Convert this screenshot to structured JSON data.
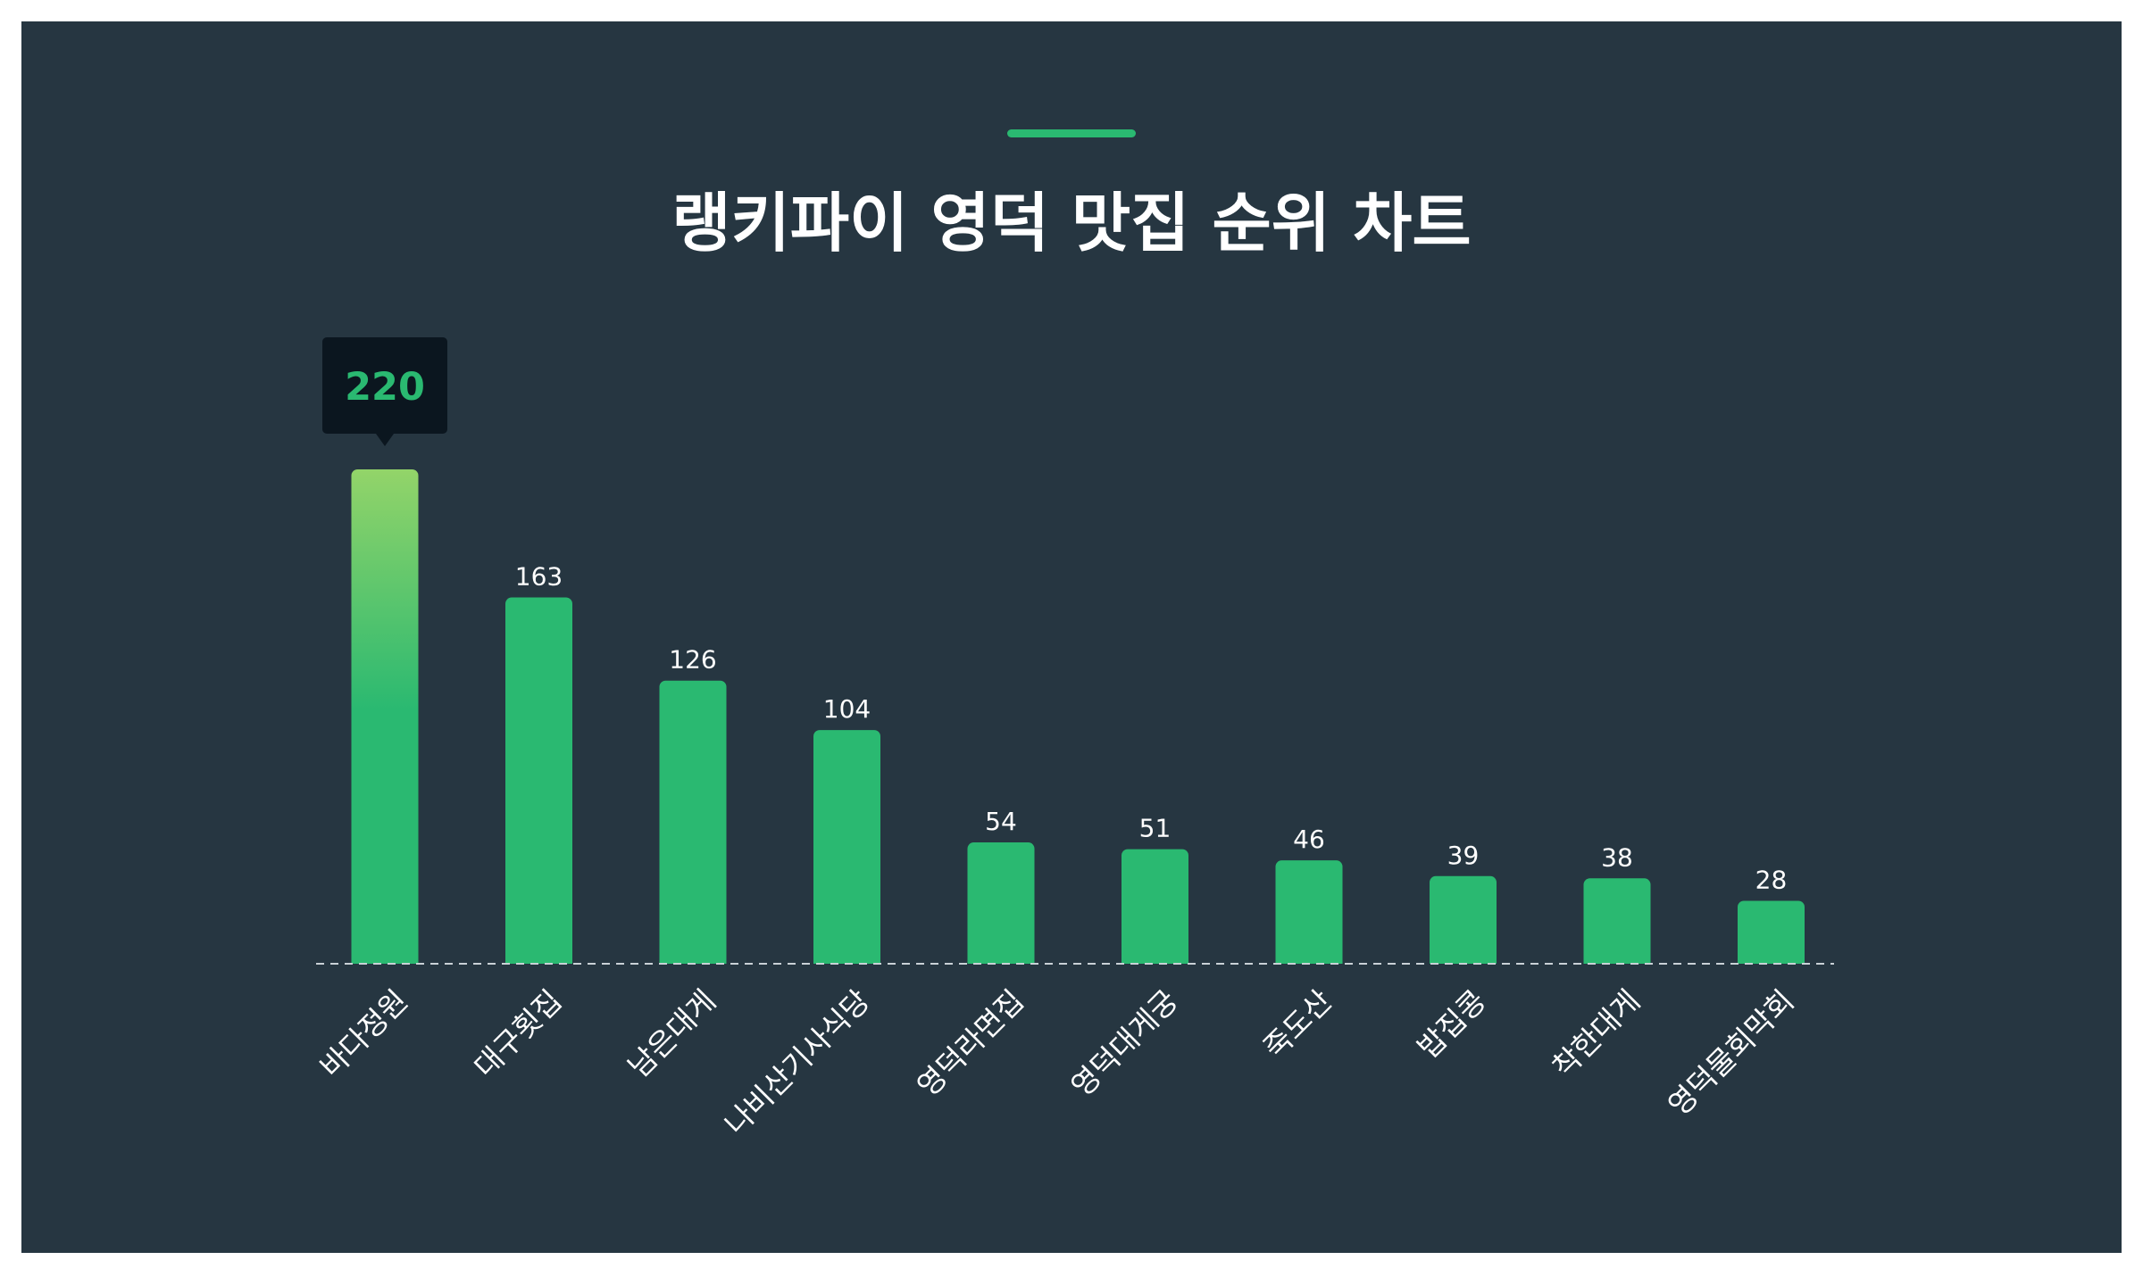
{
  "chart_data": {
    "type": "bar",
    "title": "랭키파이 영덕 맛집 순위 차트",
    "categories": [
      "바다정원",
      "대구횟집",
      "남은대게",
      "나비산기사식당",
      "영덕라면집",
      "영덕대게궁",
      "죽도산",
      "밥집콩",
      "착한대게",
      "영덕물회막회"
    ],
    "values": [
      220,
      163,
      126,
      104,
      54,
      51,
      46,
      39,
      38,
      28
    ],
    "ylim": [
      0,
      220
    ],
    "grid": false,
    "highlight_index": 0,
    "colors": {
      "background": "#263641",
      "bar": "#2ab971",
      "highlight_top": "#93d469",
      "tooltip_bg": "#0b161f",
      "tooltip_text": "#2ab971",
      "baseline": "#c9d1d6"
    }
  }
}
